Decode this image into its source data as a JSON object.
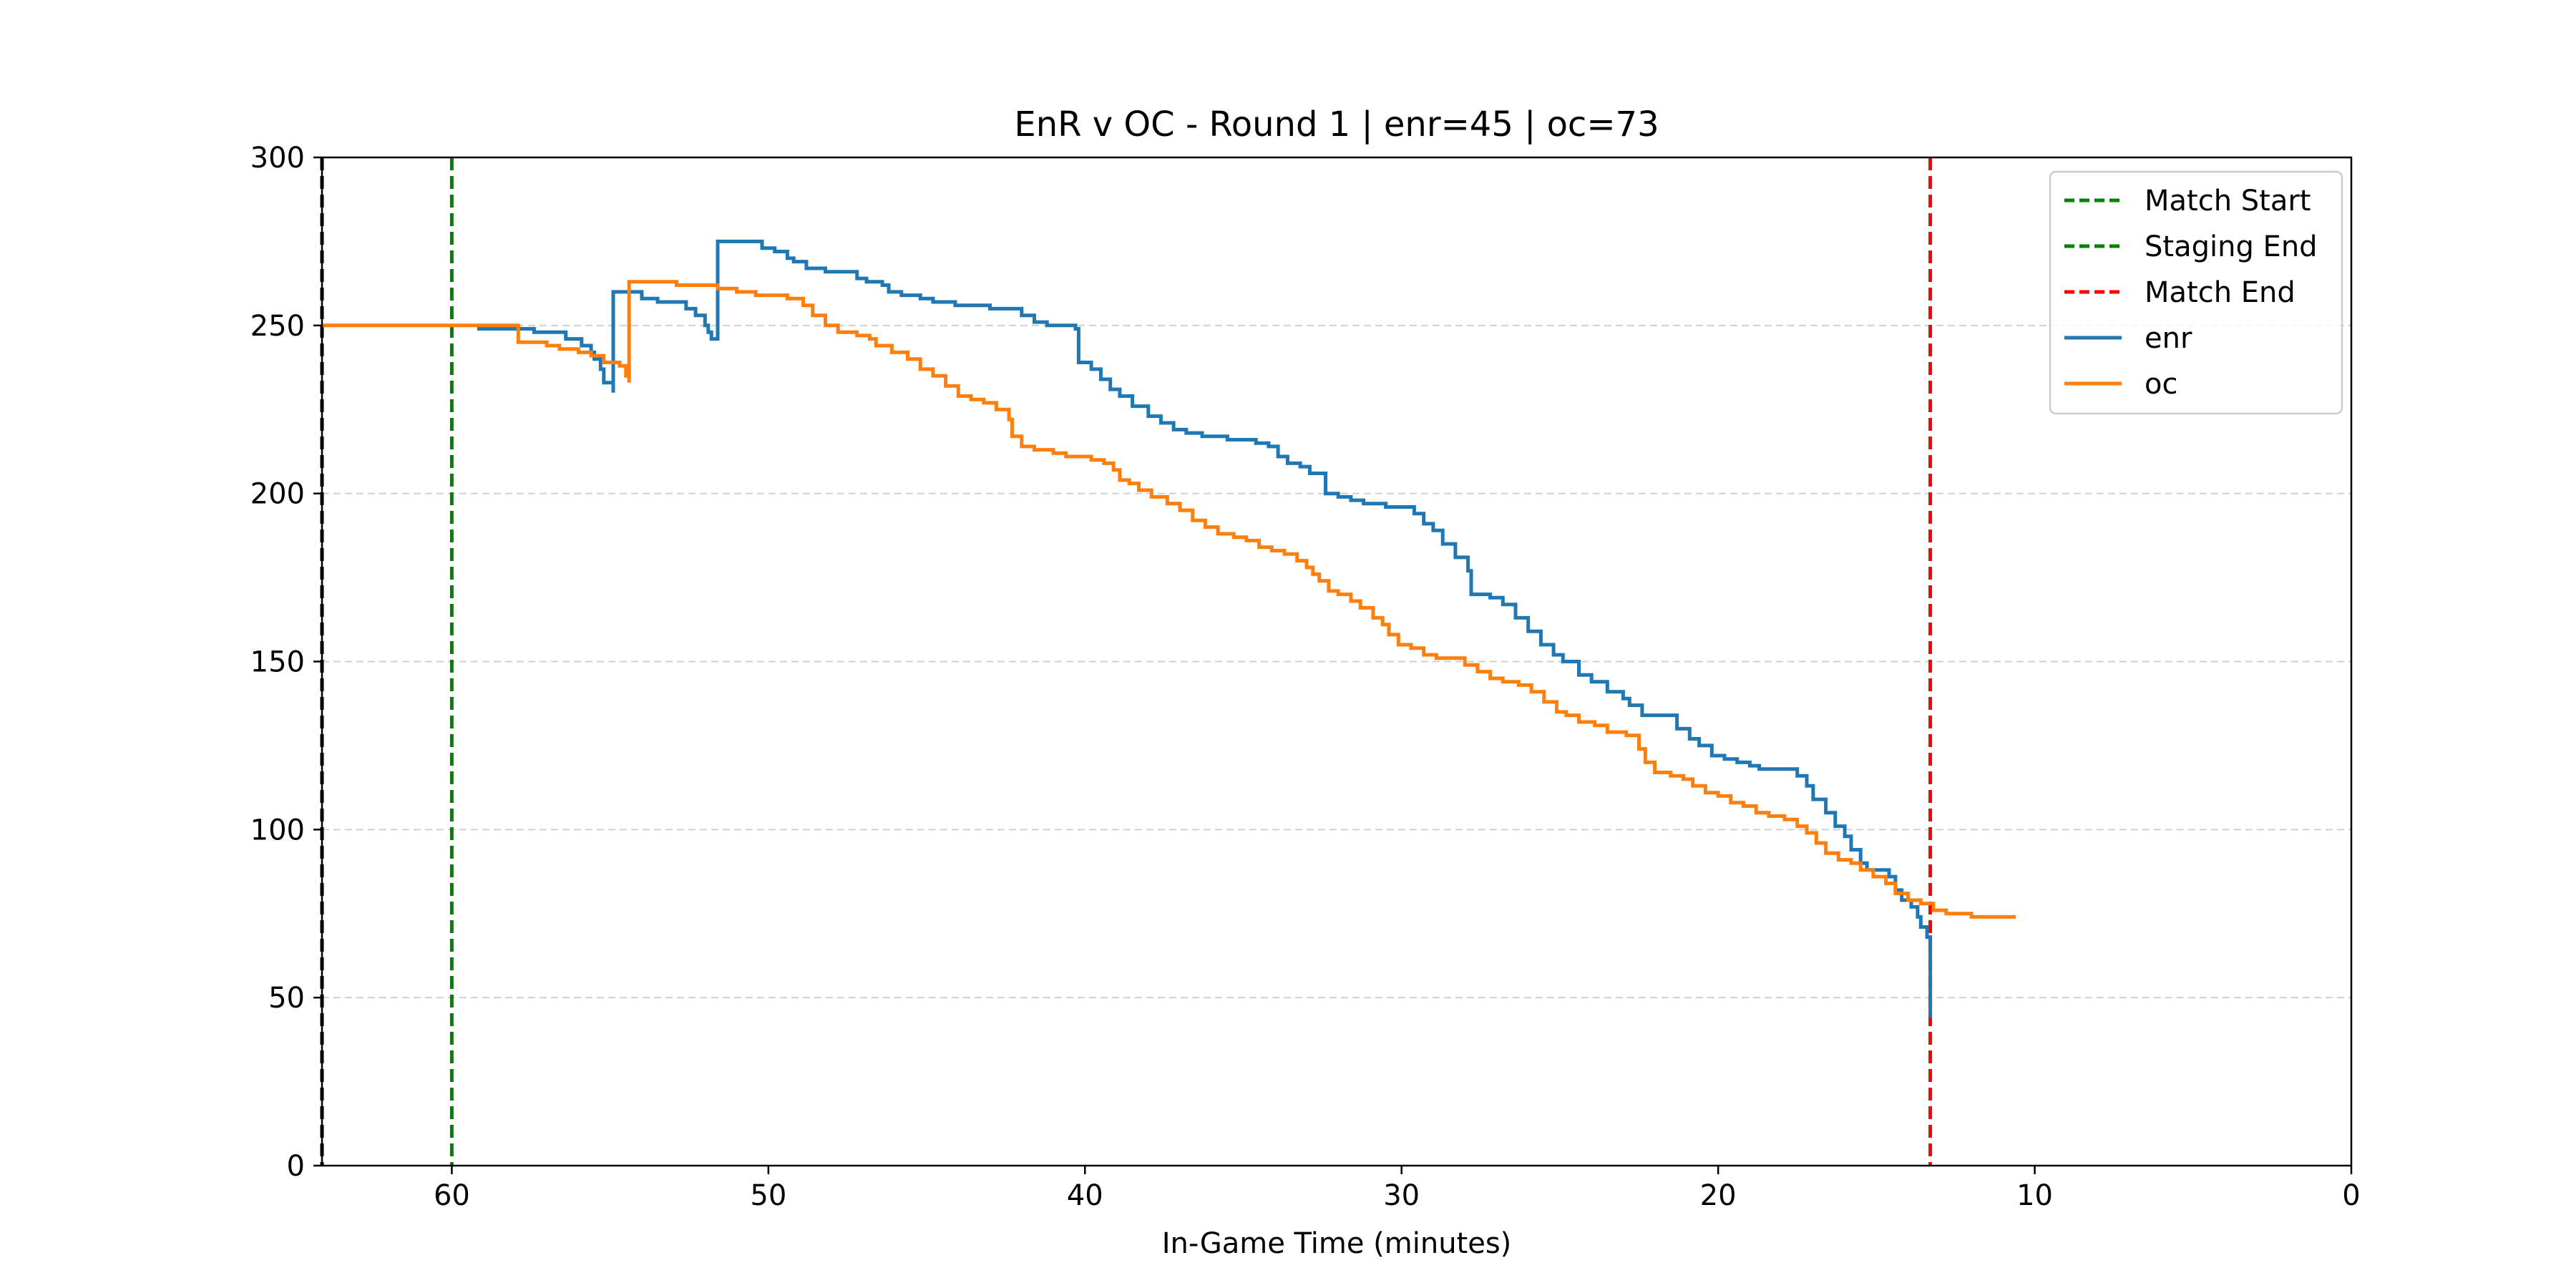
{
  "chart_data": {
    "type": "line",
    "title": "EnR v OC - Round 1 | enr=45 | oc=73",
    "xlabel": "In-Game Time (minutes)",
    "ylabel": "",
    "xlim": [
      64.1,
      0
    ],
    "ylim": [
      0,
      300
    ],
    "x_inverted": true,
    "x_ticks": [
      60,
      50,
      40,
      30,
      20,
      10,
      0
    ],
    "y_ticks": [
      0,
      50,
      100,
      150,
      200,
      250,
      300
    ],
    "grid": {
      "y": true,
      "x": false,
      "style": "dashed"
    },
    "legend_position": "upper right",
    "vlines": [
      {
        "name": "Match Start",
        "x": 64.1,
        "color": "#000000",
        "style": "dashed"
      },
      {
        "name": "Staging End",
        "x": 60.0,
        "color": "#008000",
        "style": "dashed"
      },
      {
        "name": "Match End",
        "x": 13.3,
        "color": "#ff0000",
        "style": "dashed"
      }
    ],
    "series": [
      {
        "name": "enr",
        "color": "#1f77b4",
        "points": [
          [
            59.2,
            249
          ],
          [
            57.6,
            249
          ],
          [
            57.4,
            248
          ],
          [
            56.6,
            248
          ],
          [
            56.4,
            246
          ],
          [
            55.9,
            244
          ],
          [
            55.6,
            242
          ],
          [
            55.5,
            240
          ],
          [
            55.3,
            237
          ],
          [
            55.2,
            233
          ],
          [
            54.9,
            232
          ],
          [
            54.9,
            230
          ],
          [
            54.9,
            260
          ],
          [
            54.1,
            260
          ],
          [
            54.0,
            258
          ],
          [
            53.6,
            258
          ],
          [
            53.5,
            257
          ],
          [
            52.8,
            257
          ],
          [
            52.6,
            255
          ],
          [
            52.3,
            253
          ],
          [
            52.0,
            250
          ],
          [
            51.9,
            248
          ],
          [
            51.8,
            246
          ],
          [
            51.6,
            246
          ],
          [
            51.6,
            275
          ],
          [
            50.5,
            275
          ],
          [
            50.2,
            273
          ],
          [
            49.8,
            272
          ],
          [
            49.4,
            270
          ],
          [
            49.2,
            269
          ],
          [
            48.8,
            267
          ],
          [
            48.4,
            267
          ],
          [
            48.2,
            266
          ],
          [
            47.4,
            266
          ],
          [
            47.2,
            264
          ],
          [
            46.9,
            263
          ],
          [
            46.4,
            262
          ],
          [
            46.2,
            260
          ],
          [
            45.8,
            259
          ],
          [
            45.2,
            258
          ],
          [
            44.8,
            257
          ],
          [
            44.1,
            256
          ],
          [
            43.2,
            256
          ],
          [
            43.0,
            255
          ],
          [
            42.3,
            255
          ],
          [
            42.0,
            253
          ],
          [
            41.6,
            251
          ],
          [
            41.2,
            250
          ],
          [
            40.3,
            249
          ],
          [
            40.2,
            248
          ],
          [
            40.2,
            239
          ],
          [
            39.8,
            237
          ],
          [
            39.5,
            234
          ],
          [
            39.2,
            231
          ],
          [
            38.9,
            229
          ],
          [
            38.5,
            226
          ],
          [
            38.0,
            223
          ],
          [
            37.6,
            221
          ],
          [
            37.2,
            219
          ],
          [
            36.8,
            218
          ],
          [
            36.3,
            217
          ],
          [
            35.5,
            216
          ],
          [
            35.0,
            216
          ],
          [
            34.6,
            215
          ],
          [
            34.2,
            214
          ],
          [
            33.9,
            211
          ],
          [
            33.6,
            209
          ],
          [
            33.2,
            208
          ],
          [
            32.9,
            206
          ],
          [
            32.4,
            205
          ],
          [
            32.4,
            205
          ],
          [
            32.4,
            200
          ],
          [
            32.0,
            199
          ],
          [
            31.6,
            198
          ],
          [
            31.2,
            197
          ],
          [
            30.5,
            196
          ],
          [
            29.8,
            196
          ],
          [
            29.6,
            194
          ],
          [
            29.3,
            191
          ],
          [
            29.0,
            189
          ],
          [
            28.7,
            185
          ],
          [
            28.3,
            181
          ],
          [
            27.9,
            177
          ],
          [
            27.8,
            170
          ],
          [
            27.2,
            169
          ],
          [
            26.8,
            167
          ],
          [
            26.4,
            163
          ],
          [
            26.0,
            159
          ],
          [
            25.6,
            155
          ],
          [
            25.2,
            152
          ],
          [
            24.9,
            150
          ],
          [
            24.5,
            150
          ],
          [
            24.4,
            146
          ],
          [
            24.0,
            144
          ],
          [
            23.5,
            141
          ],
          [
            23.0,
            139
          ],
          [
            22.8,
            137
          ],
          [
            22.4,
            134
          ],
          [
            21.5,
            134
          ],
          [
            21.3,
            130
          ],
          [
            20.9,
            127
          ],
          [
            20.6,
            125
          ],
          [
            20.2,
            122
          ],
          [
            19.8,
            121
          ],
          [
            19.4,
            120
          ],
          [
            19.0,
            119
          ],
          [
            18.7,
            118
          ],
          [
            17.8,
            118
          ],
          [
            17.5,
            116
          ],
          [
            17.2,
            113
          ],
          [
            17.0,
            109
          ],
          [
            16.6,
            105
          ],
          [
            16.3,
            101
          ],
          [
            16.0,
            98
          ],
          [
            15.8,
            94
          ],
          [
            15.5,
            90
          ],
          [
            15.3,
            88
          ],
          [
            14.9,
            88
          ],
          [
            14.6,
            86
          ],
          [
            14.4,
            82
          ],
          [
            14.2,
            79
          ],
          [
            13.9,
            77
          ],
          [
            13.7,
            74
          ],
          [
            13.6,
            71
          ],
          [
            13.4,
            68
          ],
          [
            13.3,
            65
          ],
          [
            13.3,
            56
          ],
          [
            13.3,
            44
          ]
        ]
      },
      {
        "name": "oc",
        "color": "#ff7f0e",
        "points": [
          [
            64.1,
            250
          ],
          [
            57.9,
            250
          ],
          [
            57.9,
            245
          ],
          [
            57.2,
            245
          ],
          [
            57.0,
            244
          ],
          [
            56.6,
            243
          ],
          [
            56.3,
            243
          ],
          [
            56.0,
            242
          ],
          [
            55.6,
            241
          ],
          [
            55.2,
            239
          ],
          [
            54.7,
            238
          ],
          [
            54.5,
            237
          ],
          [
            54.5,
            235
          ],
          [
            54.4,
            233
          ],
          [
            54.4,
            263
          ],
          [
            53.2,
            263
          ],
          [
            52.9,
            262
          ],
          [
            51.7,
            262
          ],
          [
            51.6,
            261
          ],
          [
            51.0,
            260
          ],
          [
            50.4,
            259
          ],
          [
            49.4,
            258
          ],
          [
            48.9,
            256
          ],
          [
            48.6,
            253
          ],
          [
            48.2,
            250
          ],
          [
            47.8,
            248
          ],
          [
            47.2,
            247
          ],
          [
            46.8,
            246
          ],
          [
            46.6,
            244
          ],
          [
            46.1,
            242
          ],
          [
            45.6,
            240
          ],
          [
            45.2,
            237
          ],
          [
            44.8,
            235
          ],
          [
            44.4,
            232
          ],
          [
            44.0,
            229
          ],
          [
            43.6,
            228
          ],
          [
            43.2,
            227
          ],
          [
            42.8,
            225
          ],
          [
            42.4,
            222
          ],
          [
            42.3,
            217
          ],
          [
            42.0,
            214
          ],
          [
            41.6,
            213
          ],
          [
            41.0,
            212
          ],
          [
            40.6,
            211
          ],
          [
            39.8,
            210
          ],
          [
            39.4,
            209
          ],
          [
            39.1,
            207
          ],
          [
            38.9,
            204
          ],
          [
            38.6,
            203
          ],
          [
            38.3,
            201
          ],
          [
            37.9,
            199
          ],
          [
            37.4,
            197
          ],
          [
            37.0,
            195
          ],
          [
            36.6,
            192
          ],
          [
            36.2,
            190
          ],
          [
            35.8,
            188
          ],
          [
            35.3,
            187
          ],
          [
            34.9,
            186
          ],
          [
            34.5,
            184
          ],
          [
            34.1,
            183
          ],
          [
            33.7,
            182
          ],
          [
            33.3,
            180
          ],
          [
            33.0,
            178
          ],
          [
            32.8,
            176
          ],
          [
            32.6,
            174
          ],
          [
            32.3,
            171
          ],
          [
            32.0,
            170
          ],
          [
            31.6,
            168
          ],
          [
            31.3,
            166
          ],
          [
            30.9,
            163
          ],
          [
            30.6,
            161
          ],
          [
            30.4,
            158
          ],
          [
            30.1,
            155
          ],
          [
            29.7,
            154
          ],
          [
            29.3,
            152
          ],
          [
            28.9,
            151
          ],
          [
            28.4,
            151
          ],
          [
            28.0,
            149
          ],
          [
            27.6,
            147
          ],
          [
            27.2,
            145
          ],
          [
            26.8,
            144
          ],
          [
            26.3,
            143
          ],
          [
            25.9,
            141
          ],
          [
            25.5,
            138
          ],
          [
            25.1,
            135
          ],
          [
            24.8,
            134
          ],
          [
            24.4,
            132
          ],
          [
            23.9,
            131
          ],
          [
            23.5,
            129
          ],
          [
            22.9,
            128
          ],
          [
            22.5,
            124
          ],
          [
            22.3,
            120
          ],
          [
            22.0,
            117
          ],
          [
            21.5,
            116
          ],
          [
            21.1,
            115
          ],
          [
            20.8,
            113
          ],
          [
            20.4,
            111
          ],
          [
            20.0,
            110
          ],
          [
            19.6,
            108
          ],
          [
            19.2,
            107
          ],
          [
            18.8,
            105
          ],
          [
            18.4,
            104
          ],
          [
            17.9,
            103
          ],
          [
            17.5,
            101
          ],
          [
            17.2,
            99
          ],
          [
            16.9,
            96
          ],
          [
            16.6,
            93
          ],
          [
            16.2,
            91
          ],
          [
            15.8,
            90
          ],
          [
            15.5,
            88
          ],
          [
            15.1,
            86
          ],
          [
            14.7,
            84
          ],
          [
            14.4,
            81
          ],
          [
            14.0,
            79
          ],
          [
            13.6,
            78
          ],
          [
            13.2,
            76
          ],
          [
            12.8,
            75
          ],
          [
            12.4,
            75
          ],
          [
            12.0,
            74
          ],
          [
            10.7,
            74
          ],
          [
            10.6,
            74
          ]
        ]
      }
    ]
  }
}
